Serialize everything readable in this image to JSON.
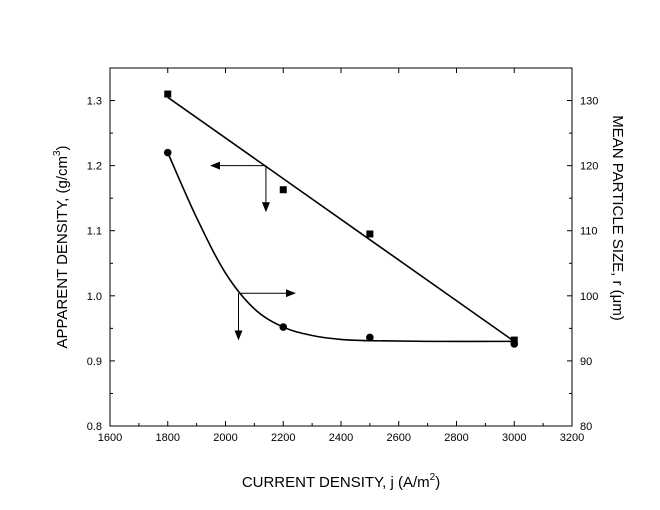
{
  "chart_data": {
    "type": "scatter",
    "xlabel_main": "CURRENT DENSITY, j (A/m",
    "xlabel_sup": "2",
    "xlabel_end": ")",
    "ylabel_left_main": "APPARENT DENSITY, (g/cm",
    "ylabel_left_sup": "3",
    "ylabel_left_end": ")",
    "ylabel_right_main": "MEAN PARTICLE SIZE, r (",
    "ylabel_right_mu": "μ",
    "ylabel_right_end": "m)",
    "xlim": [
      1600,
      3200
    ],
    "ylim_left": [
      0.8,
      1.35
    ],
    "ylim_right": [
      80,
      135
    ],
    "x_ticks": [
      1600,
      1800,
      2000,
      2200,
      2400,
      2600,
      2800,
      3000,
      3200
    ],
    "x_tick_labels": [
      "1600",
      "1800",
      "2000",
      "2200",
      "2400",
      "2600",
      "2800",
      "3000",
      "3200"
    ],
    "y_left_ticks": [
      0.8,
      0.9,
      1.0,
      1.1,
      1.2,
      1.3
    ],
    "y_left_tick_labels": [
      "0.8",
      "0.9",
      "1.0",
      "1.1",
      "1.2",
      "1.3"
    ],
    "y_right_ticks": [
      80,
      90,
      100,
      110,
      120,
      130
    ],
    "y_right_tick_labels": [
      "80",
      "90",
      "100",
      "110",
      "120",
      "130"
    ],
    "grid": false,
    "legend": "none",
    "series": [
      {
        "marker": "square",
        "axis": "left",
        "x": [
          1800,
          2200,
          2500,
          3000
        ],
        "y": [
          1.31,
          1.163,
          1.095,
          0.932
        ],
        "fit_line": {
          "x": [
            1800,
            3000
          ],
          "y": [
            1.305,
            0.93
          ]
        }
      },
      {
        "marker": "circle",
        "axis": "right",
        "x": [
          1800,
          2200,
          2500,
          3000
        ],
        "y": [
          122.0,
          95.2,
          93.6,
          92.6
        ],
        "fit_curve": [
          [
            1800,
            122.0
          ],
          [
            1900,
            112.0
          ],
          [
            2000,
            103.5
          ],
          [
            2100,
            98.0
          ],
          [
            2200,
            95.2
          ],
          [
            2300,
            93.9
          ],
          [
            2400,
            93.3
          ],
          [
            2500,
            93.1
          ],
          [
            2700,
            93.0
          ],
          [
            3000,
            93.0
          ]
        ]
      }
    ],
    "annotations": [
      {
        "name": "left-axis-pointer",
        "corner": [
          2140,
          1.2
        ],
        "arrow_to": [
          1950,
          1.2
        ],
        "drop_to": [
          2140,
          1.13
        ]
      },
      {
        "name": "right-axis-pointer",
        "corner": [
          2045,
          100.4
        ],
        "arrow_to": [
          2240,
          100.4
        ],
        "drop_to": [
          2045,
          93.3
        ]
      }
    ],
    "colors": {
      "ink": "#000000",
      "background": "#ffffff"
    }
  }
}
